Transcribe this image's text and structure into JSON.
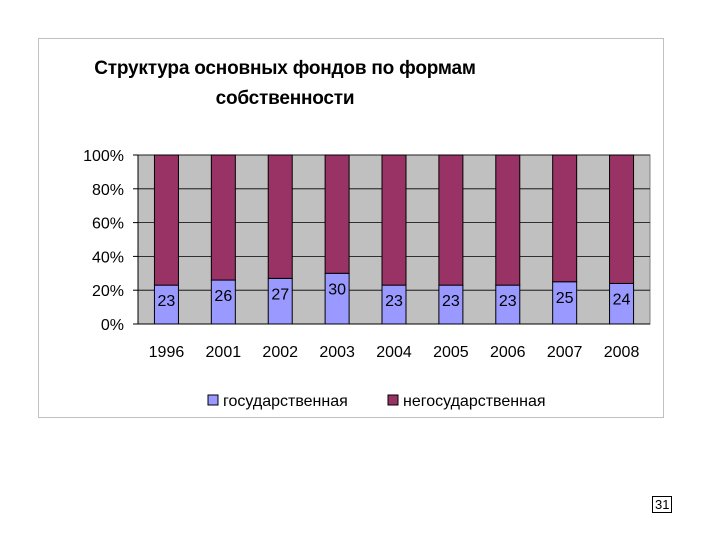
{
  "chart_data": {
    "type": "bar",
    "stacked": "percent",
    "title": "Структура основных фондов по формам собственности",
    "categories": [
      "1996",
      "2001",
      "2002",
      "2003",
      "2004",
      "2005",
      "2006",
      "2007",
      "2008"
    ],
    "series": [
      {
        "name": "государственная",
        "values": [
          23,
          26,
          27,
          30,
          23,
          23,
          23,
          25,
          24
        ],
        "color": "#9999ff"
      },
      {
        "name": "негосударственная",
        "values": [
          77,
          74,
          73,
          70,
          77,
          77,
          77,
          75,
          76
        ],
        "color": "#993366"
      }
    ],
    "ylim": [
      0,
      100
    ],
    "yticks": [
      "0%",
      "20%",
      "40%",
      "60%",
      "80%",
      "100%"
    ],
    "grid": true,
    "plot_background": "#c0c0c0",
    "legend_position": "bottom"
  },
  "page_number": "31"
}
